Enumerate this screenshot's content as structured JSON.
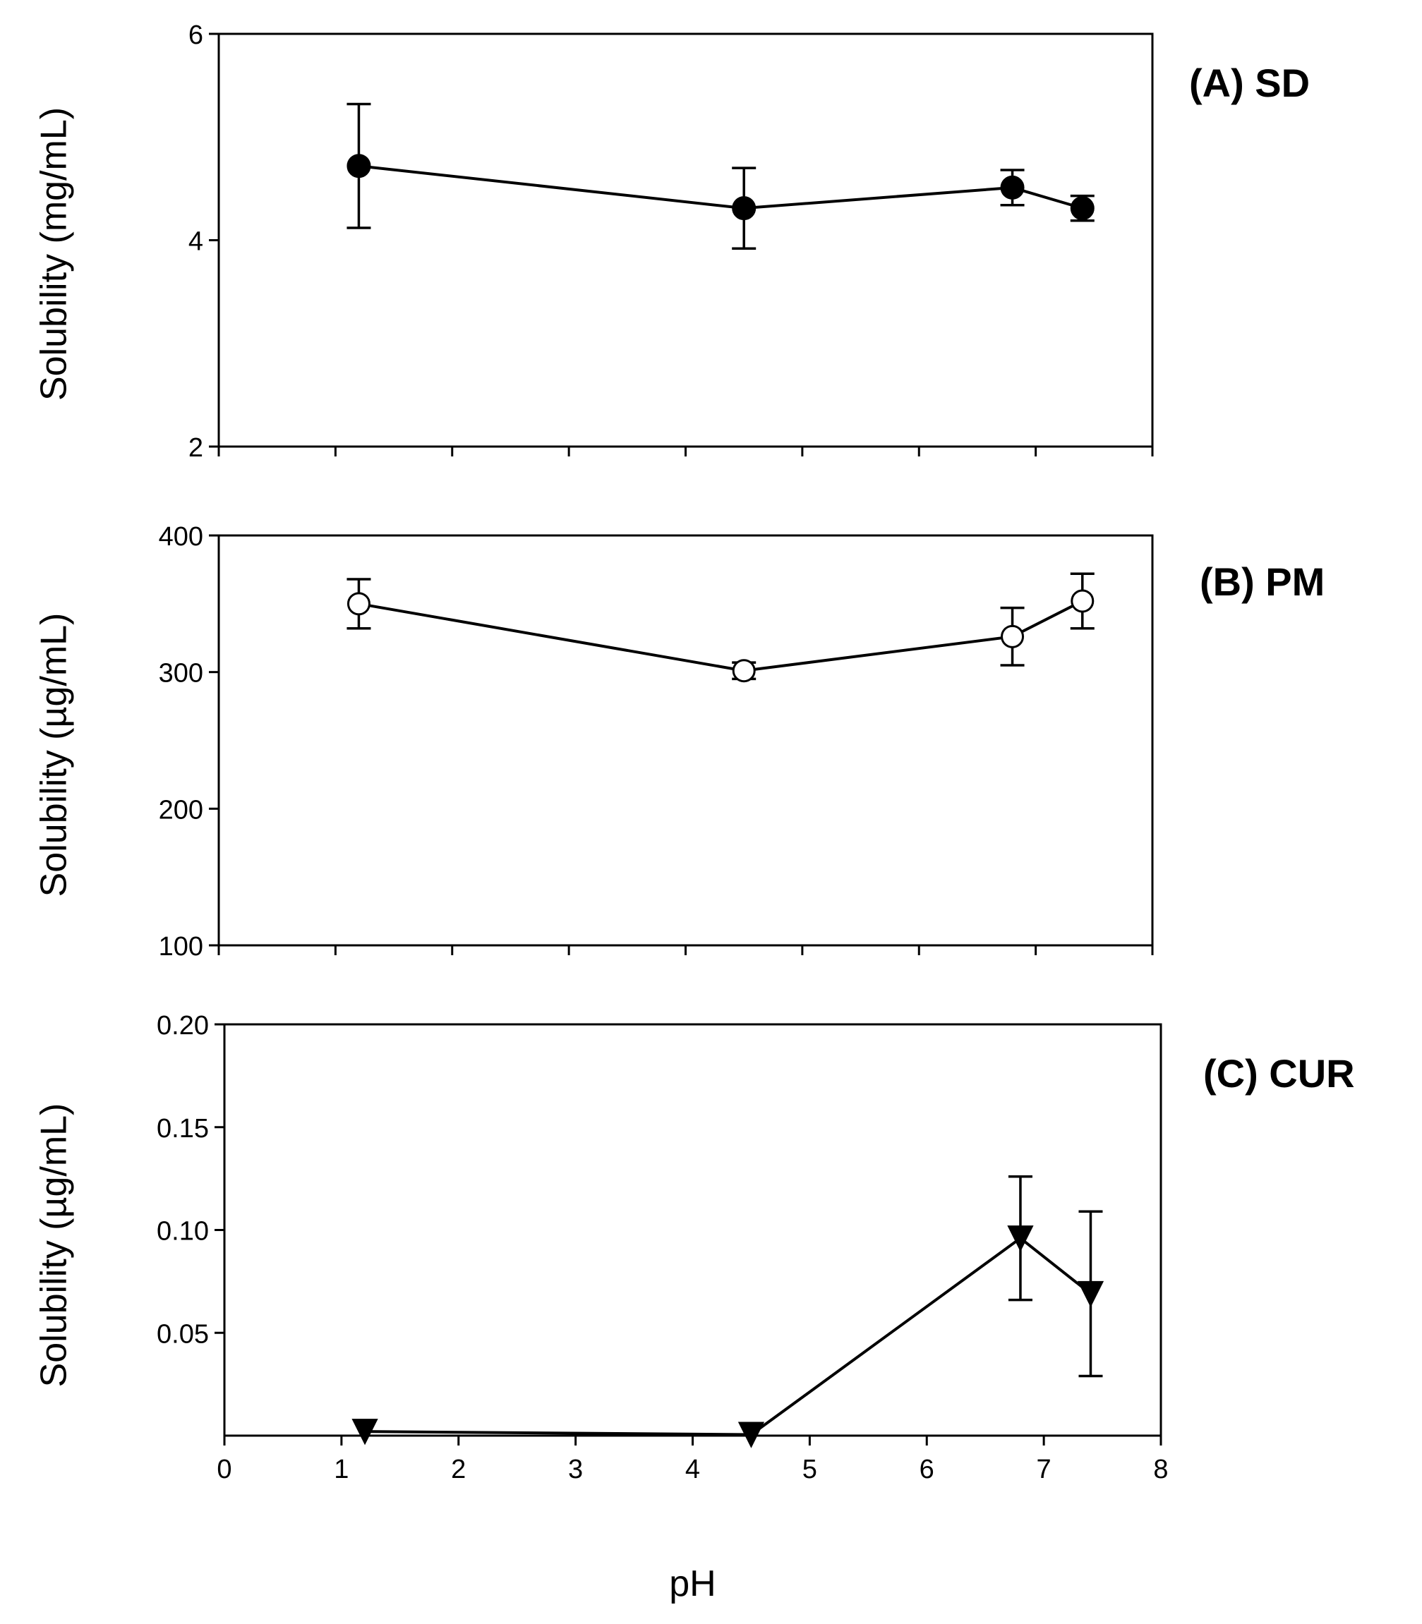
{
  "chart_data": [
    {
      "type": "line",
      "panel_label": "(A) SD",
      "ylabel": "Solubility (mg/mL)",
      "xlabel": "",
      "xlim": [
        0,
        8
      ],
      "ylim": [
        2,
        6
      ],
      "yticks": [
        2,
        4,
        6
      ],
      "ytick_labels": [
        "2",
        "4",
        "6"
      ],
      "xticks": [
        0,
        1,
        2,
        3,
        4,
        5,
        6,
        7,
        8
      ],
      "show_xtick_labels": false,
      "marker": "filled-circle",
      "series": [
        {
          "name": "SD",
          "x": [
            1.2,
            4.5,
            6.8,
            7.4
          ],
          "y": [
            4.72,
            4.31,
            4.51,
            4.31
          ],
          "err": [
            0.6,
            0.39,
            0.17,
            0.12
          ]
        }
      ]
    },
    {
      "type": "line",
      "panel_label": "(B) PM",
      "ylabel": "Solubility (µg/mL)",
      "xlabel": "",
      "xlim": [
        0,
        8
      ],
      "ylim": [
        100,
        400
      ],
      "yticks": [
        100,
        200,
        300,
        400
      ],
      "ytick_labels": [
        "100",
        "200",
        "300",
        "400"
      ],
      "xticks": [
        0,
        1,
        2,
        3,
        4,
        5,
        6,
        7,
        8
      ],
      "show_xtick_labels": false,
      "marker": "open-circle",
      "series": [
        {
          "name": "PM",
          "x": [
            1.2,
            4.5,
            6.8,
            7.4
          ],
          "y": [
            350,
            301,
            326,
            352
          ],
          "err": [
            18,
            6,
            21,
            20
          ]
        }
      ]
    },
    {
      "type": "line",
      "panel_label": "(C) CUR",
      "ylabel": "Solubility (µg/mL)",
      "xlabel": "pH",
      "xlim": [
        0,
        8
      ],
      "ylim": [
        0,
        0.2
      ],
      "yticks": [
        0.05,
        0.1,
        0.15,
        0.2
      ],
      "ytick_labels": [
        "0.05",
        "0.10",
        "0.15",
        "0.20"
      ],
      "xticks": [
        0,
        1,
        2,
        3,
        4,
        5,
        6,
        7,
        8
      ],
      "xtick_labels": [
        "0",
        "1",
        "2",
        "3",
        "4",
        "5",
        "6",
        "7",
        "8"
      ],
      "show_xtick_labels": true,
      "marker": "filled-triangle-down",
      "series": [
        {
          "name": "CUR",
          "x": [
            1.2,
            4.5,
            6.8,
            7.4
          ],
          "y": [
            0.002,
            0.0005,
            0.096,
            0.069
          ],
          "err": [
            0,
            0,
            0.03,
            0.04
          ]
        }
      ]
    }
  ]
}
